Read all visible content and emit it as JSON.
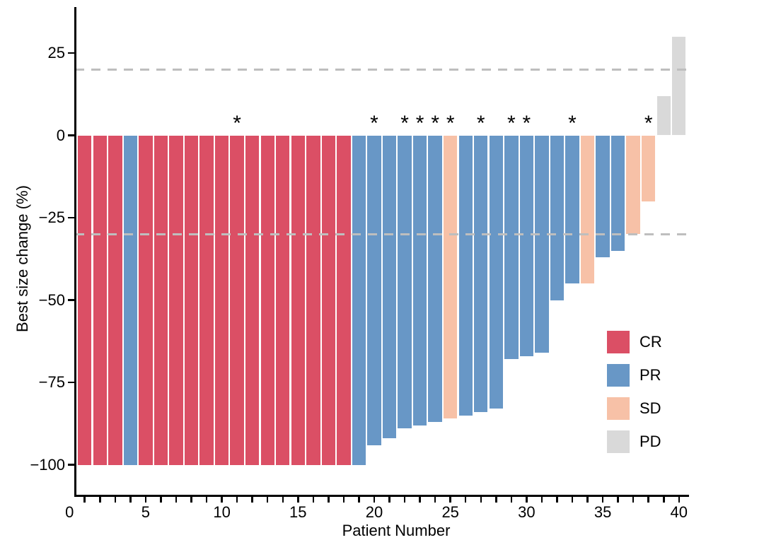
{
  "chart_data": {
    "type": "bar",
    "title": "",
    "xlabel": "Patient Number",
    "ylabel": "Best size change (%)",
    "xlim": [
      0,
      40.5
    ],
    "ylim": [
      -109,
      39
    ],
    "grid": false,
    "annotation_symbol": "*",
    "x_axis": {
      "tick_every": 1,
      "labeled_ticks": [
        {
          "value": 0,
          "label": "0"
        },
        {
          "value": 5,
          "label": "5"
        },
        {
          "value": 10,
          "label": "10"
        },
        {
          "value": 15,
          "label": "15"
        },
        {
          "value": 20,
          "label": "20"
        },
        {
          "value": 25,
          "label": "25"
        },
        {
          "value": 30,
          "label": "30"
        },
        {
          "value": 35,
          "label": "35"
        },
        {
          "value": 40,
          "label": "40"
        }
      ]
    },
    "y_axis": {
      "ticks": [
        {
          "value": 25,
          "label": "25"
        },
        {
          "value": 0,
          "label": "0"
        },
        {
          "value": -25,
          "label": "−25"
        },
        {
          "value": -50,
          "label": "−50"
        },
        {
          "value": -75,
          "label": "−75"
        },
        {
          "value": -100,
          "label": "−100"
        }
      ]
    },
    "reference_lines": [
      {
        "value": 20,
        "color": "#bebebe",
        "style": "dashed",
        "name": "upper-threshold"
      },
      {
        "value": -30,
        "color": "#bebebe",
        "style": "dashed",
        "name": "lower-threshold"
      }
    ],
    "legend": {
      "position": "right-middle",
      "entries": [
        {
          "label": "CR",
          "color": "#db4f65"
        },
        {
          "label": "PR",
          "color": "#6897c6"
        },
        {
          "label": "SD",
          "color": "#f7c1a7"
        },
        {
          "label": "PD",
          "color": "#d9d9d9"
        }
      ]
    },
    "patients": [
      {
        "id": 1,
        "change": -100,
        "response": "CR",
        "starred": false
      },
      {
        "id": 2,
        "change": -100,
        "response": "CR",
        "starred": false
      },
      {
        "id": 3,
        "change": -100,
        "response": "CR",
        "starred": false
      },
      {
        "id": 4,
        "change": -100,
        "response": "PR",
        "starred": false
      },
      {
        "id": 5,
        "change": -100,
        "response": "CR",
        "starred": false
      },
      {
        "id": 6,
        "change": -100,
        "response": "CR",
        "starred": false
      },
      {
        "id": 7,
        "change": -100,
        "response": "CR",
        "starred": false
      },
      {
        "id": 8,
        "change": -100,
        "response": "CR",
        "starred": false
      },
      {
        "id": 9,
        "change": -100,
        "response": "CR",
        "starred": false
      },
      {
        "id": 10,
        "change": -100,
        "response": "CR",
        "starred": false
      },
      {
        "id": 11,
        "change": -100,
        "response": "CR",
        "starred": true
      },
      {
        "id": 12,
        "change": -100,
        "response": "CR",
        "starred": false
      },
      {
        "id": 13,
        "change": -100,
        "response": "CR",
        "starred": false
      },
      {
        "id": 14,
        "change": -100,
        "response": "CR",
        "starred": false
      },
      {
        "id": 15,
        "change": -100,
        "response": "CR",
        "starred": false
      },
      {
        "id": 16,
        "change": -100,
        "response": "CR",
        "starred": false
      },
      {
        "id": 17,
        "change": -100,
        "response": "CR",
        "starred": false
      },
      {
        "id": 18,
        "change": -100,
        "response": "CR",
        "starred": false
      },
      {
        "id": 19,
        "change": -100,
        "response": "PR",
        "starred": false
      },
      {
        "id": 20,
        "change": -94,
        "response": "PR",
        "starred": true
      },
      {
        "id": 21,
        "change": -92,
        "response": "PR",
        "starred": false
      },
      {
        "id": 22,
        "change": -89,
        "response": "PR",
        "starred": true
      },
      {
        "id": 23,
        "change": -88,
        "response": "PR",
        "starred": true
      },
      {
        "id": 24,
        "change": -87,
        "response": "PR",
        "starred": true
      },
      {
        "id": 25,
        "change": -86,
        "response": "SD",
        "starred": true
      },
      {
        "id": 26,
        "change": -85,
        "response": "PR",
        "starred": false
      },
      {
        "id": 27,
        "change": -84,
        "response": "PR",
        "starred": true
      },
      {
        "id": 28,
        "change": -83,
        "response": "PR",
        "starred": false
      },
      {
        "id": 29,
        "change": -68,
        "response": "PR",
        "starred": true
      },
      {
        "id": 30,
        "change": -67,
        "response": "PR",
        "starred": true
      },
      {
        "id": 31,
        "change": -66,
        "response": "PR",
        "starred": false
      },
      {
        "id": 32,
        "change": -50,
        "response": "PR",
        "starred": false
      },
      {
        "id": 33,
        "change": -45,
        "response": "PR",
        "starred": true
      },
      {
        "id": 34,
        "change": -45,
        "response": "SD",
        "starred": false
      },
      {
        "id": 35,
        "change": -37,
        "response": "PR",
        "starred": false
      },
      {
        "id": 36,
        "change": -35,
        "response": "PR",
        "starred": false
      },
      {
        "id": 37,
        "change": -30,
        "response": "SD",
        "starred": false
      },
      {
        "id": 38,
        "change": -20,
        "response": "SD",
        "starred": true
      },
      {
        "id": 39,
        "change": 12,
        "response": "PD",
        "starred": false
      },
      {
        "id": 40,
        "change": 30,
        "response": "PD",
        "starred": false
      }
    ]
  }
}
